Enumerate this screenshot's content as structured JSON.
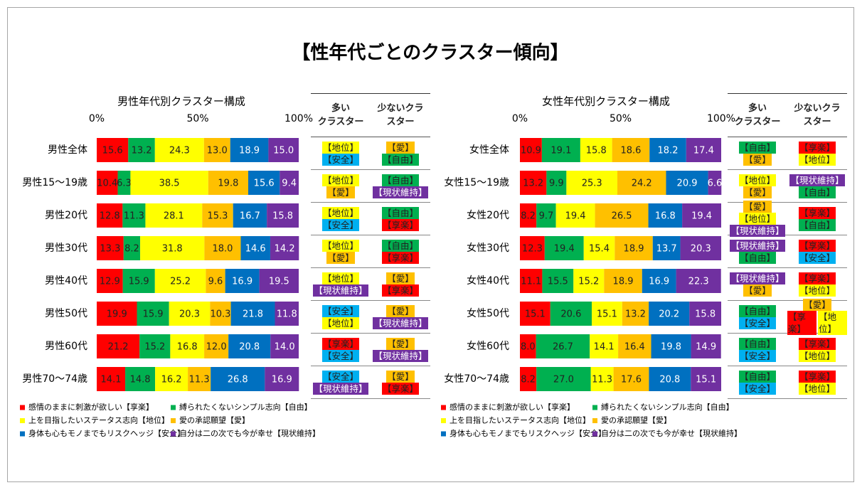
{
  "title": "【性年代ごとのクラスター傾向】",
  "chart_data": [
    {
      "type": "bar",
      "orientation": "horizontal",
      "stacked": true,
      "grid": false,
      "title": "男性年代別クラスター構成",
      "categories": [
        "男性全体",
        "男性15～19歳",
        "男性20代",
        "男性30代",
        "男性40代",
        "男性50代",
        "男性60代",
        "男性70～74歳"
      ],
      "xlim": [
        0,
        100
      ],
      "xticks": [
        {
          "value": 0,
          "label": "0%"
        },
        {
          "value": 50,
          "label": "50%"
        },
        {
          "value": 100,
          "label": "100%"
        }
      ],
      "series": [
        {
          "name": "感情のままに刺激が欲しい【享楽】",
          "color": "#ff0000",
          "label_color": "#222222",
          "values": [
            15.6,
            10.4,
            12.8,
            13.3,
            12.9,
            19.9,
            21.2,
            14.1
          ],
          "value_labels": [
            "15.6",
            "10.4",
            "12.8",
            "13.3",
            "12.9",
            "19.9",
            "21.2",
            "14.1"
          ]
        },
        {
          "name": "縛られたくないシンプル志向【自由】",
          "color": "#00b050",
          "label_color": "#222222",
          "values": [
            13.2,
            6.3,
            11.3,
            8.2,
            15.9,
            15.9,
            15.2,
            14.8
          ],
          "value_labels": [
            "13.2",
            "6.3",
            "11.3",
            "8.2",
            "15.9",
            "15.9",
            "15.2",
            "14.8"
          ]
        },
        {
          "name": "上を目指したいステータス志向【地位】",
          "color": "#ffff00",
          "label_color": "#222222",
          "values": [
            24.3,
            38.5,
            28.1,
            31.8,
            25.2,
            20.3,
            16.8,
            16.2
          ],
          "value_labels": [
            "24.3",
            "38.5",
            "28.1",
            "31.8",
            "25.2",
            "20.3",
            "16.8",
            "16.2"
          ]
        },
        {
          "name": "愛の承認願望【愛】",
          "color": "#ffc000",
          "label_color": "#222222",
          "values": [
            13.0,
            19.8,
            15.3,
            18.0,
            9.6,
            10.3,
            12.0,
            11.3
          ],
          "value_labels": [
            "13.0",
            "19.8",
            "15.3",
            "18.0",
            "9.6",
            "10.3",
            "12.0",
            "11.3"
          ]
        },
        {
          "name": "身体も心もモノまでもリスクヘッジ【安全】",
          "color": "#0070c0",
          "label_color": "#ffffff",
          "values": [
            18.9,
            15.6,
            16.7,
            14.6,
            16.9,
            21.8,
            20.8,
            26.8
          ],
          "value_labels": [
            "18.9",
            "15.6",
            "16.7",
            "14.6",
            "16.9",
            "21.8",
            "20.8",
            "26.8"
          ]
        },
        {
          "name": "自分は二の次でも今が幸せ【現状維持】",
          "color": "#7030a0",
          "label_color": "#ffffff",
          "values": [
            15.0,
            9.4,
            15.8,
            14.2,
            19.5,
            11.8,
            14.0,
            16.9
          ],
          "value_labels": [
            "15.0",
            "9.4",
            "15.8",
            "14.2",
            "19.5",
            "11.8",
            "14.0",
            "16.9"
          ]
        }
      ]
    },
    {
      "type": "bar",
      "orientation": "horizontal",
      "stacked": true,
      "grid": false,
      "title": "女性年代別クラスター構成",
      "categories": [
        "女性全体",
        "女性15～19歳",
        "女性20代",
        "女性30代",
        "女性40代",
        "女性50代",
        "女性60代",
        "女性70～74歳"
      ],
      "xlim": [
        0,
        100
      ],
      "xticks": [
        {
          "value": 0,
          "label": "0%"
        },
        {
          "value": 50,
          "label": "50%"
        },
        {
          "value": 100,
          "label": "100%"
        }
      ],
      "series": [
        {
          "name": "感情のままに刺激が欲しい【享楽】",
          "color": "#ff0000",
          "label_color": "#222222",
          "values": [
            10.9,
            13.2,
            8.2,
            12.3,
            11.1,
            15.1,
            8.0,
            8.2
          ],
          "value_labels": [
            "10.9",
            "13.2",
            "8.2",
            "12.3",
            "11.1",
            "15.1",
            "8.0",
            "8.2"
          ]
        },
        {
          "name": "縛られたくないシンプル志向【自由】",
          "color": "#00b050",
          "label_color": "#222222",
          "values": [
            19.1,
            9.9,
            9.7,
            19.4,
            15.5,
            20.6,
            26.7,
            27.0
          ],
          "value_labels": [
            "19.1",
            "9.9",
            "9.7",
            "19.4",
            "15.5",
            "20.6",
            "26.7",
            "27.0"
          ]
        },
        {
          "name": "上を目指したいステータス志向【地位】",
          "color": "#ffff00",
          "label_color": "#222222",
          "values": [
            15.8,
            25.3,
            19.4,
            15.4,
            15.2,
            15.1,
            14.1,
            11.3
          ],
          "value_labels": [
            "15.8",
            "25.3",
            "19.4",
            "15.4",
            "15.2",
            "15.1",
            "14.1",
            "11.3"
          ]
        },
        {
          "name": "愛の承認願望【愛】",
          "color": "#ffc000",
          "label_color": "#222222",
          "values": [
            18.6,
            24.2,
            26.5,
            18.9,
            18.9,
            13.2,
            16.4,
            17.6
          ],
          "value_labels": [
            "18.6",
            "24.2",
            "26.5",
            "18.9",
            "18.9",
            "13.2",
            "16.4",
            "17.6"
          ]
        },
        {
          "name": "身体も心もモノまでもリスクヘッジ【安全】",
          "color": "#0070c0",
          "label_color": "#ffffff",
          "values": [
            18.2,
            20.9,
            16.8,
            13.7,
            16.9,
            20.2,
            19.8,
            20.8
          ],
          "value_labels": [
            "18.2",
            "20.9",
            "16.8",
            "13.7",
            "16.9",
            "20.2",
            "19.8",
            "20.8"
          ]
        },
        {
          "name": "自分は二の次でも今が幸せ【現状維持】",
          "color": "#7030a0",
          "label_color": "#ffffff",
          "values": [
            17.4,
            6.6,
            19.4,
            20.3,
            22.3,
            15.8,
            14.9,
            15.1
          ],
          "value_labels": [
            "17.4",
            "6.6",
            "19.4",
            "20.3",
            "22.3",
            "15.8",
            "14.9",
            "15.1"
          ]
        }
      ]
    }
  ],
  "tables": [
    {
      "header": [
        "多い\nクラスター",
        "少ないクラ\nスター"
      ],
      "rows": [
        [
          [
            [
              {
                "text": "【地位】",
                "color": "#ffff00"
              }
            ],
            [
              {
                "text": "【安全】",
                "color": "#00b0f0"
              }
            ]
          ],
          [
            [
              {
                "text": "【愛】",
                "color": "#ffc000"
              }
            ],
            [
              {
                "text": "【自由】",
                "color": "#00b050"
              }
            ]
          ]
        ],
        [
          [
            [
              {
                "text": "【地位】",
                "color": "#ffff00"
              }
            ],
            [
              {
                "text": "【愛】",
                "color": "#ffc000"
              }
            ]
          ],
          [
            [
              {
                "text": "【自由】",
                "color": "#00b050"
              }
            ],
            [
              {
                "text": "【現状維持】",
                "color": "#7030a0",
                "text_color": "#ffffff"
              }
            ]
          ]
        ],
        [
          [
            [
              {
                "text": "【地位】",
                "color": "#ffff00"
              }
            ],
            [
              {
                "text": "【安全】",
                "color": "#00b0f0"
              }
            ]
          ],
          [
            [
              {
                "text": "【自由】",
                "color": "#00b050"
              }
            ],
            [
              {
                "text": "【享楽】",
                "color": "#ff0000"
              }
            ]
          ]
        ],
        [
          [
            [
              {
                "text": "【地位】",
                "color": "#ffff00"
              }
            ],
            [
              {
                "text": "【愛】",
                "color": "#ffc000"
              }
            ]
          ],
          [
            [
              {
                "text": "【自由】",
                "color": "#00b050"
              }
            ],
            [
              {
                "text": "【享楽】",
                "color": "#ff0000"
              }
            ]
          ]
        ],
        [
          [
            [
              {
                "text": "【地位】",
                "color": "#ffff00"
              }
            ],
            [
              {
                "text": "【現状維持】",
                "color": "#7030a0",
                "text_color": "#ffffff"
              }
            ]
          ],
          [
            [
              {
                "text": "【愛】",
                "color": "#ffc000"
              }
            ],
            [
              {
                "text": "【享楽】",
                "color": "#ff0000"
              }
            ]
          ]
        ],
        [
          [
            [
              {
                "text": "【安全】",
                "color": "#00b0f0"
              }
            ],
            [
              {
                "text": "【地位】",
                "color": "#ffff00"
              }
            ]
          ],
          [
            [
              {
                "text": "【愛】",
                "color": "#ffc000"
              }
            ],
            [
              {
                "text": "【現状維持】",
                "color": "#7030a0",
                "text_color": "#ffffff"
              }
            ]
          ]
        ],
        [
          [
            [
              {
                "text": "【享楽】",
                "color": "#ff0000"
              }
            ],
            [
              {
                "text": "【安全】",
                "color": "#00b0f0"
              }
            ]
          ],
          [
            [
              {
                "text": "【愛】",
                "color": "#ffc000"
              }
            ],
            [
              {
                "text": "【現状維持】",
                "color": "#7030a0",
                "text_color": "#ffffff"
              }
            ]
          ]
        ],
        [
          [
            [
              {
                "text": "【安全】",
                "color": "#00b0f0"
              }
            ],
            [
              {
                "text": "【現状維持】",
                "color": "#7030a0",
                "text_color": "#ffffff"
              }
            ]
          ],
          [
            [
              {
                "text": "【愛】",
                "color": "#ffc000"
              }
            ],
            [
              {
                "text": "【享楽】",
                "color": "#ff0000"
              }
            ]
          ]
        ]
      ]
    },
    {
      "header": [
        "多い\nクラスター",
        "少ないクラ\nスター"
      ],
      "rows": [
        [
          [
            [
              {
                "text": "【自由】",
                "color": "#00b050"
              }
            ],
            [
              {
                "text": "【愛】",
                "color": "#ffc000"
              }
            ]
          ],
          [
            [
              {
                "text": "【享楽】",
                "color": "#ff0000"
              }
            ],
            [
              {
                "text": "【地位】",
                "color": "#ffff00"
              }
            ]
          ]
        ],
        [
          [
            [
              {
                "text": "【地位】",
                "color": "#ffff00"
              }
            ],
            [
              {
                "text": "【愛】",
                "color": "#ffc000"
              }
            ]
          ],
          [
            [
              {
                "text": "【現状維持】",
                "color": "#7030a0",
                "text_color": "#ffffff"
              }
            ],
            [
              {
                "text": "【自由】",
                "color": "#00b050"
              }
            ]
          ]
        ],
        [
          [
            [
              {
                "text": "【愛】",
                "color": "#ffc000"
              }
            ],
            [
              {
                "text": "【地位】",
                "color": "#ffff00"
              }
            ],
            [
              {
                "text": "【現状維持】",
                "color": "#7030a0",
                "text_color": "#ffffff"
              }
            ]
          ],
          [
            [
              {
                "text": "【享楽】",
                "color": "#ff0000"
              }
            ],
            [
              {
                "text": "【自由】",
                "color": "#00b050"
              }
            ]
          ]
        ],
        [
          [
            [
              {
                "text": "【現状維持】",
                "color": "#7030a0",
                "text_color": "#ffffff"
              }
            ],
            [
              {
                "text": "【自由】",
                "color": "#00b050"
              }
            ]
          ],
          [
            [
              {
                "text": "【享楽】",
                "color": "#ff0000"
              }
            ],
            [
              {
                "text": "【安全】",
                "color": "#00b0f0"
              }
            ]
          ]
        ],
        [
          [
            [
              {
                "text": "【現状維持】",
                "color": "#7030a0",
                "text_color": "#ffffff"
              }
            ],
            [
              {
                "text": "【愛】",
                "color": "#ffc000"
              }
            ]
          ],
          [
            [
              {
                "text": "【享楽】",
                "color": "#ff0000"
              }
            ],
            [
              {
                "text": "【地位】",
                "color": "#ffff00"
              }
            ]
          ]
        ],
        [
          [
            [
              {
                "text": "【自由】",
                "color": "#00b050"
              }
            ],
            [
              {
                "text": "【安全】",
                "color": "#00b0f0"
              }
            ]
          ],
          [
            [
              {
                "text": "【愛】",
                "color": "#ffc000"
              }
            ],
            [
              {
                "text": "【享楽】",
                "color": "#ff0000"
              },
              {
                "text": "【地位】",
                "color": "#ffff00"
              }
            ]
          ]
        ],
        [
          [
            [
              {
                "text": "【自由】",
                "color": "#00b050"
              }
            ],
            [
              {
                "text": "【安全】",
                "color": "#00b0f0"
              }
            ]
          ],
          [
            [
              {
                "text": "【享楽】",
                "color": "#ff0000"
              }
            ],
            [
              {
                "text": "【地位】",
                "color": "#ffff00"
              }
            ]
          ]
        ],
        [
          [
            [
              {
                "text": "【自由】",
                "color": "#00b050"
              }
            ],
            [
              {
                "text": "【安全】",
                "color": "#00b0f0"
              }
            ]
          ],
          [
            [
              {
                "text": "【享楽】",
                "color": "#ff0000"
              }
            ],
            [
              {
                "text": "【地位】",
                "color": "#ffff00"
              }
            ]
          ]
        ]
      ]
    }
  ]
}
